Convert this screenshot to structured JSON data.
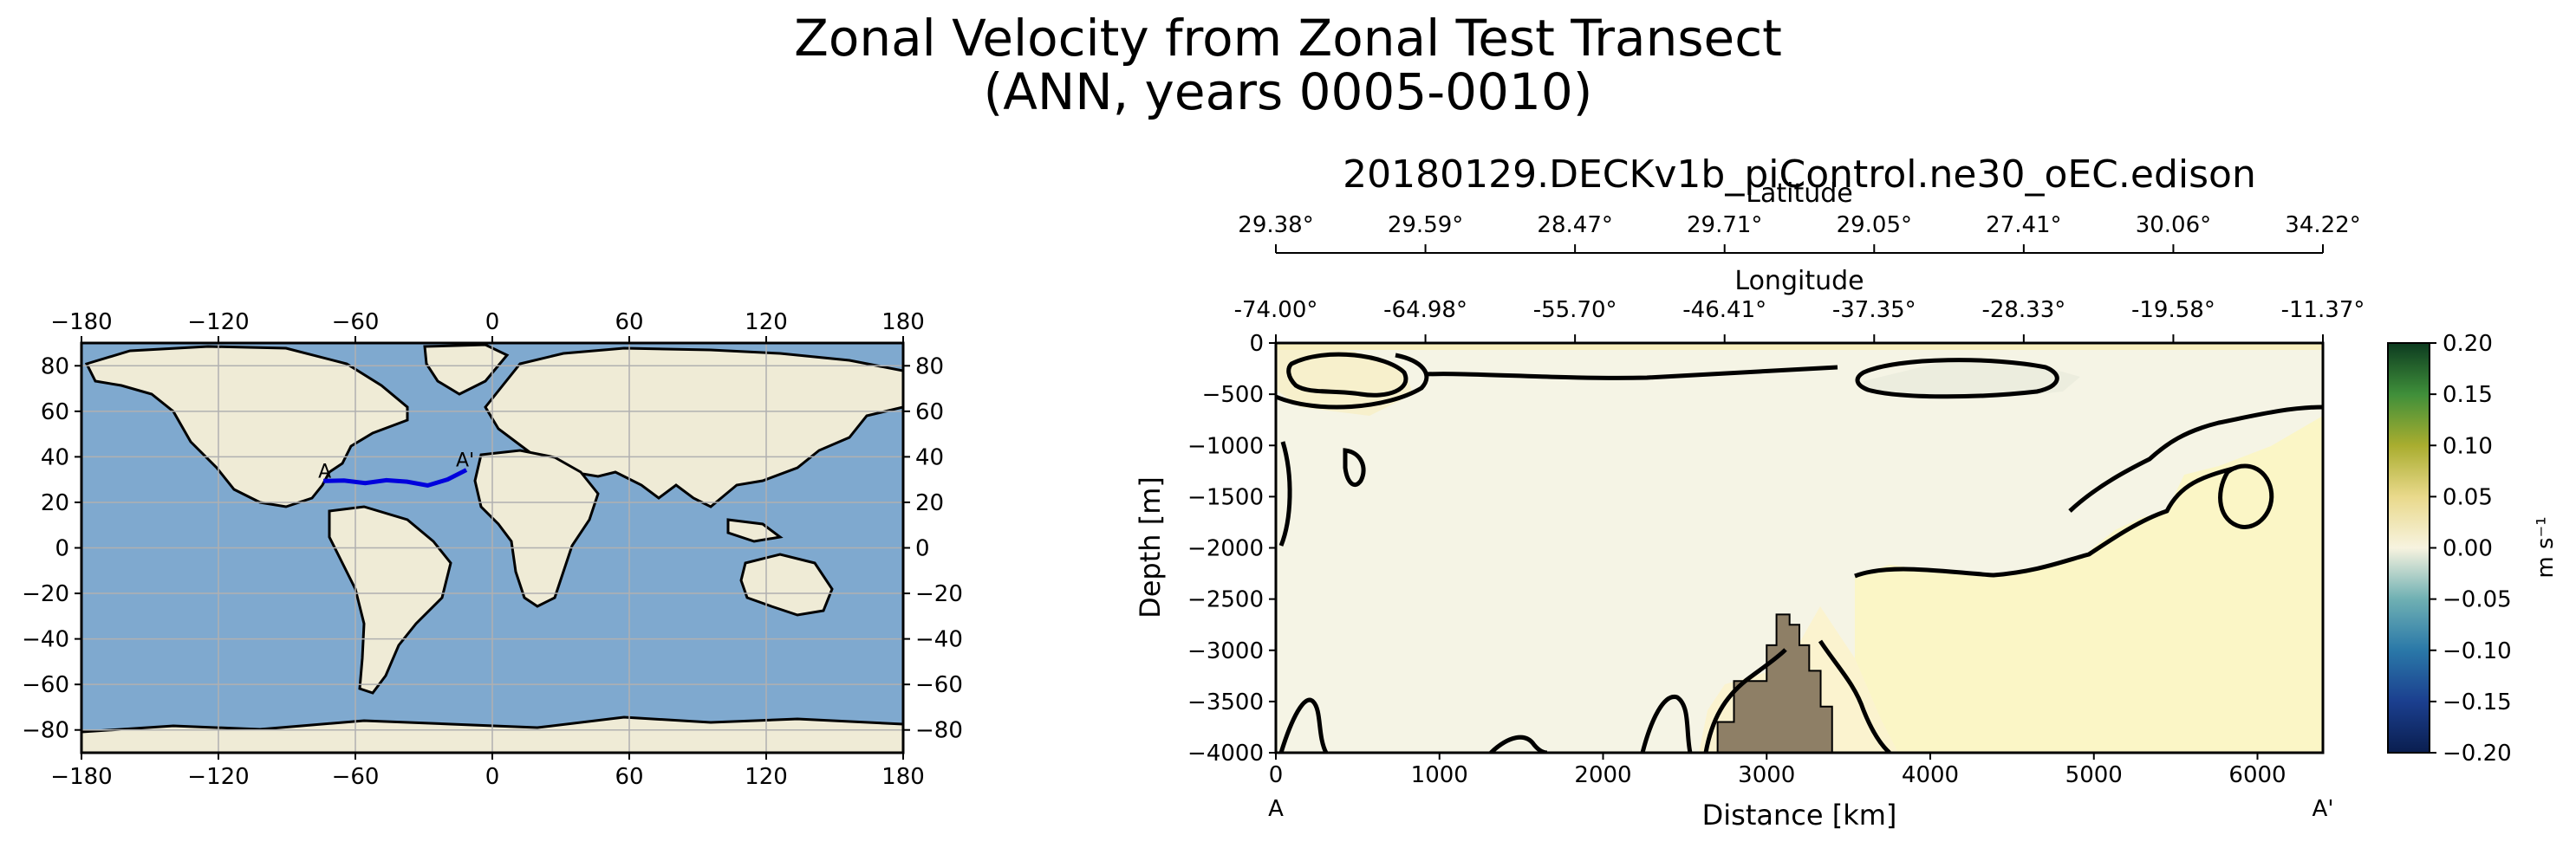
{
  "figure": {
    "title_line1": "Zonal Velocity from Zonal Test Transect",
    "title_line2": "(ANN, years 0005-0010)"
  },
  "colors": {
    "ocean": "#7fa9cf",
    "land": "#efebd6",
    "coast": "#000000",
    "transect": "#0000dd",
    "bathymetry": "#8e7f66",
    "field_bg": "#f5f4e5",
    "contour": "#000000"
  },
  "chart_data": [
    {
      "type": "map",
      "xticks": [
        -180,
        -120,
        -60,
        0,
        60,
        120,
        180
      ],
      "xtick_labels": [
        "−180",
        "−120",
        "−60",
        "0",
        "60",
        "120",
        "180"
      ],
      "yticks": [
        80,
        60,
        40,
        20,
        0,
        -20,
        -40,
        -60,
        -80
      ],
      "ytick_labels": [
        "80",
        "60",
        "40",
        "20",
        "0",
        "−20",
        "−40",
        "−60",
        "−80"
      ],
      "xlim": [
        -180,
        180
      ],
      "ylim": [
        -90,
        90
      ],
      "grid": true,
      "transect": {
        "start_label": "A",
        "end_label": "A'",
        "lon": [
          -74.0,
          -64.98,
          -55.7,
          -46.41,
          -37.35,
          -28.33,
          -19.58,
          -11.37
        ],
        "lat": [
          29.38,
          29.59,
          28.47,
          29.71,
          29.05,
          27.41,
          30.06,
          34.22
        ]
      }
    },
    {
      "type": "section",
      "title": "20180129.DECKv1b_piControl.ne30_oEC.edison",
      "xlabel": "Distance [km]",
      "ylabel": "Depth [m]",
      "xlim": [
        0,
        6400
      ],
      "ylim": [
        -4000,
        0
      ],
      "xticks": [
        0,
        1000,
        2000,
        3000,
        4000,
        5000,
        6000
      ],
      "xtick_labels": [
        "0",
        "1000",
        "2000",
        "3000",
        "4000",
        "5000",
        "6000"
      ],
      "yticks": [
        0,
        -500,
        -1000,
        -1500,
        -2000,
        -2500,
        -3000,
        -3500,
        -4000
      ],
      "ytick_labels": [
        "0",
        "−500",
        "−1000",
        "−1500",
        "−2000",
        "−2500",
        "−3000",
        "−3500",
        "−4000"
      ],
      "start_label": "A",
      "end_label": "A'",
      "top_axis_longitude": {
        "label": "Longitude",
        "tick_labels": [
          "-74.00°",
          "-64.98°",
          "-55.70°",
          "-46.41°",
          "-37.35°",
          "-28.33°",
          "-19.58°",
          "-11.37°"
        ]
      },
      "top_axis_latitude": {
        "label": "Latitude",
        "tick_labels": [
          "29.38°",
          "29.59°",
          "28.47°",
          "29.71°",
          "29.05°",
          "27.41°",
          "30.06°",
          "34.22°"
        ]
      },
      "bathymetry": {
        "distance_km": [
          2700,
          2700,
          2800,
          2800,
          3000,
          3000,
          3060,
          3060,
          3140,
          3140,
          3200,
          3200,
          3260,
          3260,
          3330,
          3330,
          3400,
          3400
        ],
        "depth_m": [
          -4000,
          -3700,
          -3700,
          -3300,
          -3300,
          -2950,
          -2950,
          -2650,
          -2650,
          -2750,
          -2750,
          -2950,
          -2950,
          -3200,
          -3200,
          -3550,
          -3550,
          -4000
        ]
      },
      "colorbar": {
        "label": "m s⁻¹",
        "min": -0.2,
        "max": 0.2,
        "ticks": [
          0.2,
          0.15,
          0.1,
          0.05,
          0.0,
          -0.05,
          -0.1,
          -0.15,
          -0.2
        ],
        "tick_labels": [
          "0.20",
          "0.15",
          "0.10",
          "0.05",
          "0.00",
          "−0.05",
          "−0.10",
          "−0.15",
          "−0.20"
        ],
        "colormap": [
          {
            "v": -0.2,
            "c": "#0a1e4f"
          },
          {
            "v": -0.15,
            "c": "#1b3f8f"
          },
          {
            "v": -0.1,
            "c": "#2a78a8"
          },
          {
            "v": -0.05,
            "c": "#6fb0b3"
          },
          {
            "v": 0.0,
            "c": "#f7f3df"
          },
          {
            "v": 0.05,
            "c": "#e9d98b"
          },
          {
            "v": 0.1,
            "c": "#a9ad2f"
          },
          {
            "v": 0.15,
            "c": "#3f8f3a"
          },
          {
            "v": 0.2,
            "c": "#0d3b20"
          }
        ]
      }
    }
  ]
}
